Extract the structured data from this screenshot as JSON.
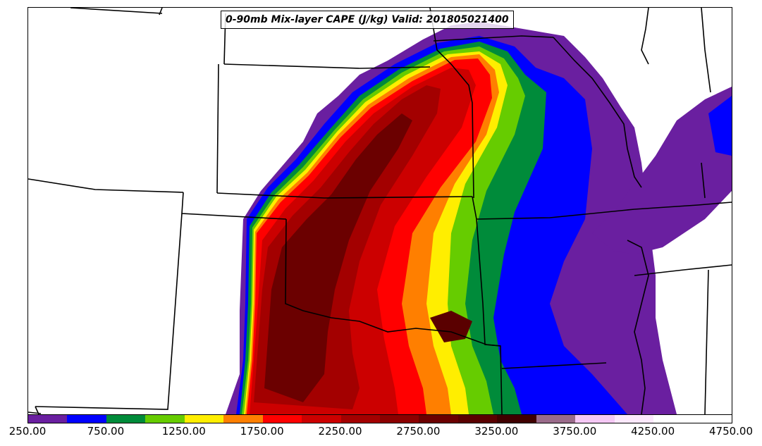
{
  "title": "0-90mb Mix-layer CAPE (J/kg) Valid: 201805021400",
  "colorbar": {
    "colors": [
      "#6a1fa0",
      "#0000ff",
      "#008b3a",
      "#66cc00",
      "#ffee00",
      "#ff7f00",
      "#ff0000",
      "#cc0000",
      "#a30000",
      "#8b0000",
      "#6b0000",
      "#5a0000",
      "#400000",
      "#9a6b8a",
      "#f5c8f5",
      "#fce8fc",
      "#ffffff",
      "#ffffff"
    ],
    "ticks": [
      "250.00",
      "750.00",
      "1250.00",
      "1750.00",
      "2250.00",
      "2750.00",
      "3250.00",
      "3750.00",
      "4250.00",
      "4750.00"
    ]
  }
}
